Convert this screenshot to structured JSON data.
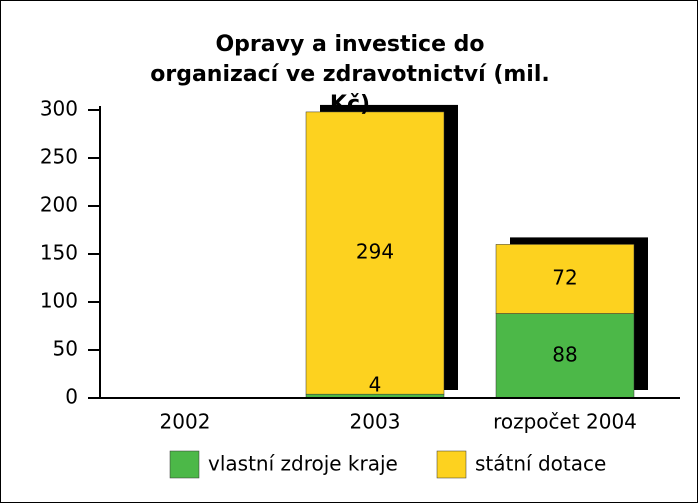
{
  "chart_data": {
    "type": "stacked_bar",
    "title": "Opravy a investice do organizací ve zdravotnictví (mil. Kč)",
    "categories": [
      "2002",
      "2003",
      "rozpočet 2004"
    ],
    "series": [
      {
        "name": "vlastní zdroje kraje",
        "color": "#4cb848",
        "values": [
          null,
          4,
          88
        ]
      },
      {
        "name": "státní dotace",
        "color": "#fdd21f",
        "values": [
          null,
          294,
          72
        ]
      }
    ],
    "ylim": [
      0,
      300
    ],
    "yticks": [
      0,
      50,
      100,
      150,
      200,
      250,
      300
    ],
    "shadow_color": "#000000",
    "legend": "bottom"
  }
}
